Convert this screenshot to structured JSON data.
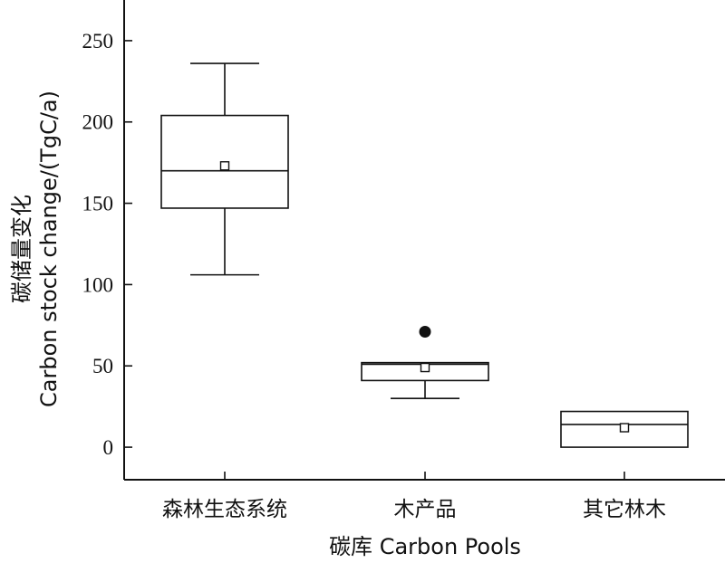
{
  "chart_data": {
    "type": "boxplot",
    "ylabel_cn": "碳储量变化",
    "ylabel_en": "Carbon stock change/(TgC/a)",
    "xlabel": "碳库 Carbon Pools",
    "ylim": [
      -20,
      275
    ],
    "yticks": [
      0,
      50,
      100,
      150,
      200,
      250
    ],
    "ytick_labels": [
      "0",
      "50",
      "100",
      "150",
      "200",
      "250"
    ],
    "categories": [
      "森林生态系统",
      "木产品",
      "其它林木"
    ],
    "boxes": [
      {
        "category": "森林生态系统",
        "whisker_low": 106,
        "q1": 147,
        "median": 170,
        "q3": 204,
        "whisker_high": 236,
        "mean": 173,
        "outliers": []
      },
      {
        "category": "木产品",
        "whisker_low": 30,
        "q1": 41,
        "median": 51,
        "q3": 52,
        "whisker_high": 52,
        "mean": 49,
        "outliers": [
          71
        ]
      },
      {
        "category": "其它林木",
        "whisker_low": 0,
        "q1": 0,
        "median": 14,
        "q3": 22,
        "whisker_high": 22,
        "mean": 12,
        "outliers": []
      }
    ]
  }
}
